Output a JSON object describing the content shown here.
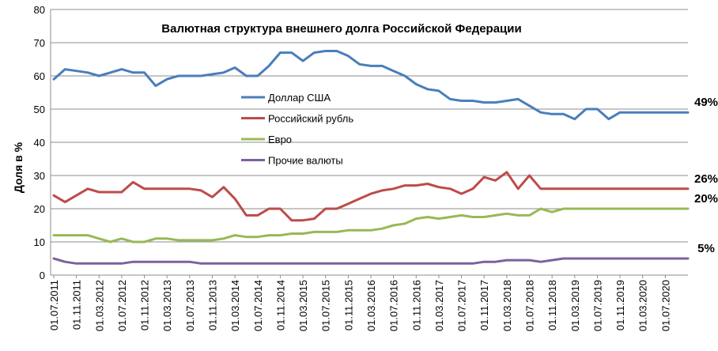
{
  "chart_data": {
    "type": "line",
    "title": "Валютная структура внешнего долга Российской Федерации",
    "xlabel": "",
    "ylabel": "Доля в %",
    "ylim": [
      0,
      80
    ],
    "yticks": [
      "0",
      "10",
      "20",
      "30",
      "40",
      "50",
      "60",
      "70",
      "80"
    ],
    "grid": "horizontal",
    "legend": "center-left inside plot",
    "x_tick_labels": [
      "01.07.2011",
      "01.11.2011",
      "01.03.2012",
      "01.07.2012",
      "01.11.2012",
      "01.03.2013",
      "01.07.2013",
      "01.11.2013",
      "01.03.2014",
      "01.07.2014",
      "01.11.2014",
      "01.03.2015",
      "01.07.2015",
      "01.11.2015",
      "01.03.2016",
      "01.07.2016",
      "01.11.2016",
      "01.03.2017",
      "01.07.2017",
      "01.11.2017",
      "01.03.2018",
      "01.07.2018",
      "01.11.2018",
      "01.03.2019",
      "01.07.2019",
      "01.11.2019",
      "01.03.2020",
      "01.07.2020"
    ],
    "x": [
      "01.07.2011",
      "01.09.2011",
      "01.11.2011",
      "01.01.2012",
      "01.03.2012",
      "01.05.2012",
      "01.07.2012",
      "01.09.2012",
      "01.11.2012",
      "01.01.2013",
      "01.03.2013",
      "01.05.2013",
      "01.07.2013",
      "01.09.2013",
      "01.11.2013",
      "01.01.2014",
      "01.03.2014",
      "01.05.2014",
      "01.07.2014",
      "01.09.2014",
      "01.11.2014",
      "01.01.2015",
      "01.03.2015",
      "01.05.2015",
      "01.07.2015",
      "01.09.2015",
      "01.11.2015",
      "01.01.2016",
      "01.03.2016",
      "01.05.2016",
      "01.07.2016",
      "01.09.2016",
      "01.11.2016",
      "01.01.2017",
      "01.03.2017",
      "01.05.2017",
      "01.07.2017",
      "01.09.2017",
      "01.11.2017",
      "01.01.2018",
      "01.03.2018",
      "01.05.2018",
      "01.07.2018",
      "01.09.2018",
      "01.11.2018",
      "01.01.2019",
      "01.03.2019",
      "01.05.2019",
      "01.07.2019",
      "01.09.2019",
      "01.11.2019",
      "01.01.2020",
      "01.03.2020",
      "01.05.2020",
      "01.07.2020",
      "01.09.2020",
      "01.11.2020"
    ],
    "series": [
      {
        "name": "Доллар США",
        "color": "#4a7ebb",
        "end_label": "49%",
        "values": [
          59,
          62,
          61.5,
          61,
          60,
          61,
          62,
          61,
          61,
          57,
          59,
          60,
          60,
          60,
          60.5,
          61,
          62.5,
          60,
          60,
          63,
          67,
          67,
          64.5,
          67,
          67.5,
          67.5,
          66,
          63.5,
          63,
          63,
          61.5,
          60,
          57.5,
          56,
          55.5,
          53,
          52.5,
          52.5,
          52,
          52,
          52.5,
          53,
          51,
          49,
          48.5,
          48.5,
          47,
          50,
          50,
          47,
          49,
          49,
          49,
          49,
          49,
          49,
          49
        ]
      },
      {
        "name": "Российский рубль",
        "color": "#be4b48",
        "end_label": "26%",
        "values": [
          24,
          22,
          24,
          26,
          25,
          25,
          25,
          28,
          26,
          26,
          26,
          26,
          26,
          25.5,
          23.5,
          26.5,
          23,
          18,
          18,
          20,
          20,
          16.5,
          16.5,
          17,
          20,
          20,
          21.5,
          23,
          24.5,
          25.5,
          26,
          27,
          27,
          27.5,
          26.5,
          26,
          24.5,
          26,
          29.5,
          28.5,
          31,
          26,
          30,
          26,
          26,
          26,
          26,
          26,
          26,
          26,
          26,
          26,
          26,
          26,
          26,
          26,
          26
        ]
      },
      {
        "name": "Евро",
        "color": "#98b954",
        "end_label": "20%",
        "values": [
          12,
          12,
          12,
          12,
          11,
          10,
          11,
          10,
          10,
          11,
          11,
          10.5,
          10.5,
          10.5,
          10.5,
          11,
          12,
          11.5,
          11.5,
          12,
          12,
          12.5,
          12.5,
          13,
          13,
          13,
          13.5,
          13.5,
          13.5,
          14,
          15,
          15.5,
          17,
          17.5,
          17,
          17.5,
          18,
          17.5,
          17.5,
          18,
          18.5,
          18,
          18,
          20,
          19,
          20,
          20,
          20,
          20,
          20,
          20,
          20,
          20,
          20,
          20,
          20,
          20
        ]
      },
      {
        "name": "Прочие валюты",
        "color": "#7d60a0",
        "end_label": "5%",
        "values": [
          5,
          4,
          3.5,
          3.5,
          3.5,
          3.5,
          3.5,
          4,
          4,
          4,
          4,
          4,
          4,
          3.5,
          3.5,
          3.5,
          3.5,
          3.5,
          3.5,
          3.5,
          3.5,
          3.5,
          3.5,
          3.5,
          3.5,
          3.5,
          3.5,
          3.5,
          3.5,
          3.5,
          3.5,
          3.5,
          3.5,
          3.5,
          3.5,
          3.5,
          3.5,
          3.5,
          4,
          4,
          4.5,
          4.5,
          4.5,
          4,
          4.5,
          5,
          5,
          5,
          5,
          5,
          5,
          5,
          5,
          5,
          5,
          5,
          5
        ]
      }
    ]
  }
}
